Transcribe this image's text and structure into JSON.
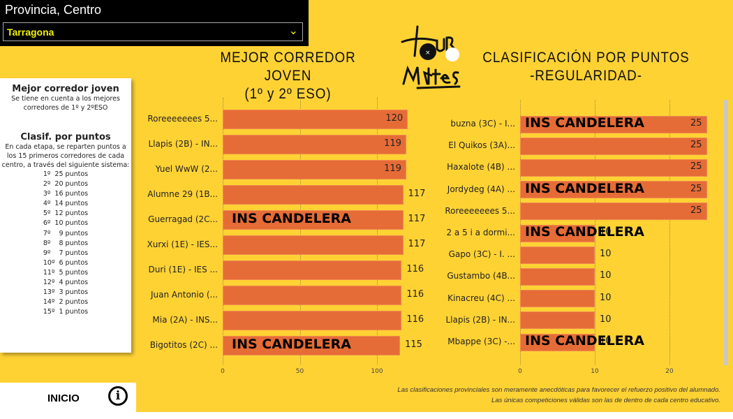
{
  "filter": {
    "title": "Provincia, Centro",
    "selected": "Tarragona",
    "icon": "chevron-down-icon"
  },
  "logo": {
    "text": "el TOUR de M4tes"
  },
  "left_title": {
    "line1": "MEJOR CORREDOR JOVEN",
    "line2": "(1º y 2º ESO)"
  },
  "right_title": {
    "line1": "CLASIFICACIÓN POR PUNTOS",
    "line2": "-REGULARIDAD-"
  },
  "info": {
    "h1": "Mejor corredor joven",
    "p1": "Se tiene en cuenta a los mejores corredores de 1º y 2ºESO",
    "h2": "Clasif. por puntos",
    "p2": "En cada etapa, se reparten puntos a los 15 primeros corredores de cada centro, a través del siguiente sistema:",
    "points": [
      "1º  25 puntos",
      "2º  20 puntos",
      "3º  16 puntos",
      "4º  14 puntos",
      "5º  12 puntos",
      "6º  10 puntos",
      "7º    9 puntos",
      "8º    8 puntos",
      "9º    7 puntos",
      "10º  6 puntos",
      "11º  5 puntos",
      "12º  4 puntos",
      "13º  3 puntos",
      "14º  2 puntos",
      "15º  1 puntos"
    ]
  },
  "bottom": {
    "home": "INICIO",
    "info_icon": "info-icon"
  },
  "note": {
    "line1": "Las clasificaciones provinciales son meramente anecdóticas para favorecer el refuerzo positivo del alumnado.",
    "line2": "Las únicas competiciones válidas son las de dentro de cada centro educativo."
  },
  "colors": {
    "background": "#FFD234",
    "bar": "#E66C37",
    "filter_text": "#F2F200"
  },
  "chart_data": [
    {
      "type": "bar",
      "orientation": "horizontal",
      "categories": [
        "Roreeeeeees 5...",
        "Llapis (2B) - IN...",
        "Yuel WwW (2...",
        "Alumne 29 (1B...",
        "Guerragad (2C...",
        "Xurxi (1E) - IES...",
        "Duri (1E) - IES ...",
        "Juan Antonio (...",
        "Mia (2A) - INS...",
        "Bigotitos (2C) ..."
      ],
      "values": [
        120,
        119,
        119,
        117,
        117,
        117,
        116,
        116,
        116,
        115
      ],
      "overlay": {
        "text": "INS CANDELERA",
        "rows": [
          4,
          9
        ]
      },
      "xlim": [
        0,
        125
      ],
      "xticks": [
        0,
        50,
        100
      ],
      "grid": true
    },
    {
      "type": "bar",
      "orientation": "horizontal",
      "categories": [
        "buzna (3C) - I...",
        "El Quikos (3A)...",
        "Haxalote (4B) ...",
        "Jordydeg (4A) ...",
        "Roreeeeeees 5...",
        "2 a 5 i a dormi...",
        "Gapo (3C) - I. ...",
        "Gustambo (4B...",
        "Kinacreu (4C) ...",
        "Llapis (2B) - IN...",
        "Mbappe (3C) -..."
      ],
      "values": [
        25,
        25,
        25,
        25,
        25,
        10,
        10,
        10,
        10,
        10,
        10
      ],
      "overlay": {
        "text": "INS CANDELERA",
        "rows": [
          0,
          3,
          5,
          10
        ]
      },
      "xlim": [
        0,
        26
      ],
      "xticks": [
        0,
        10,
        20
      ],
      "grid": true
    }
  ]
}
